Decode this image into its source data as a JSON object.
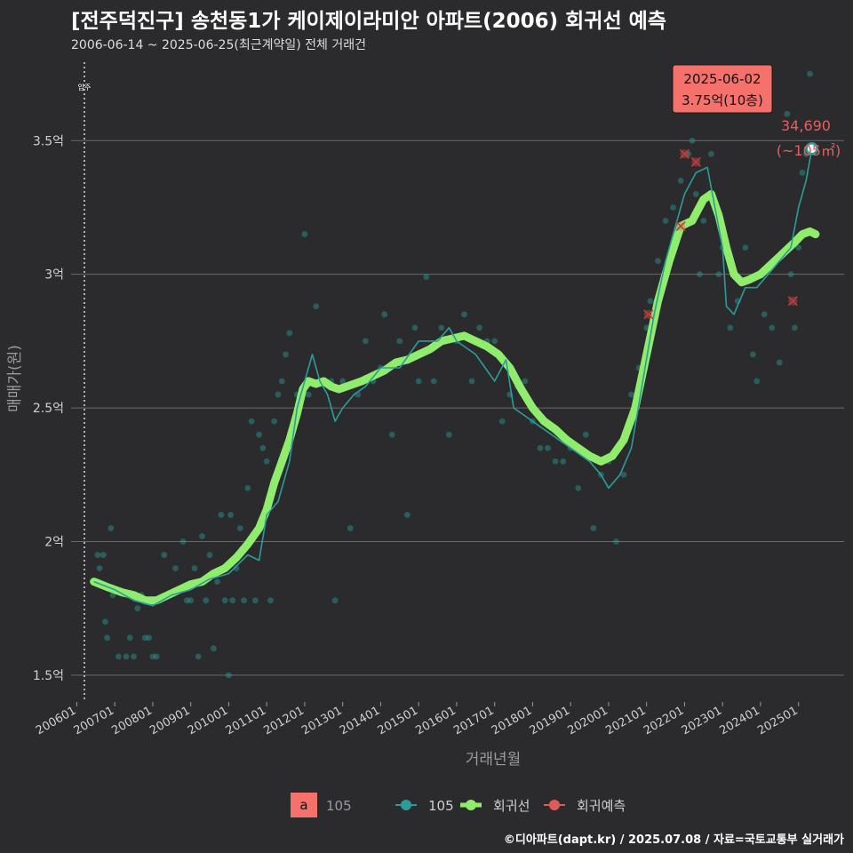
{
  "title": "[전주덕진구] 송천동1가 케이제이라미안 아파트(2006) 회귀선 예측",
  "subtitle": "2006-06-14 ~ 2025-06-25(최근계약일) 전체 거래건",
  "footer": "©디아파트(dapt.kr) / 2025.07.08 / 자료=국토교통부 실거래가",
  "colors": {
    "background": "#2b2b2d",
    "series_105": "#2a9d9a",
    "regression": "#8fec6c",
    "forecast": "#e05a5a",
    "callout_bg": "#f4716c",
    "gridline": "#6a6a6a"
  },
  "chart_data": {
    "type": "scatter",
    "xlabel": "거래년월",
    "ylabel": "매매가(원)",
    "ylim": [
      1.4,
      3.82
    ],
    "y_ticks": [
      1.5,
      2,
      2.5,
      3,
      3.5
    ],
    "y_tick_labels": [
      "1.5억",
      "2억",
      "2.5억",
      "3억",
      "3.5억"
    ],
    "x_tick_labels": [
      "200601",
      "200701",
      "200801",
      "200901",
      "201001",
      "201101",
      "201201",
      "201301",
      "201401",
      "201501",
      "201601",
      "201701",
      "201801",
      "201901",
      "202001",
      "202101",
      "202201",
      "202301",
      "202401",
      "202501"
    ],
    "x_tick_values": [
      2006.0,
      2007.0,
      2008.0,
      2009.0,
      2010.0,
      2011.0,
      2012.0,
      2013.0,
      2014.0,
      2015.0,
      2016.0,
      2017.0,
      2018.0,
      2019.0,
      2020.0,
      2021.0,
      2022.0,
      2023.0,
      2024.0,
      2025.0
    ],
    "xlim": [
      2005.85,
      2026.2
    ],
    "move_in": {
      "x": 2006.2,
      "label": "입주"
    },
    "series": [
      {
        "name": "105",
        "kind": "trades",
        "points": [
          [
            2006.55,
            1.95
          ],
          [
            2006.6,
            1.9
          ],
          [
            2006.7,
            1.95
          ],
          [
            2006.75,
            1.7
          ],
          [
            2006.8,
            1.64
          ],
          [
            2006.9,
            2.05
          ],
          [
            2006.95,
            1.8
          ],
          [
            2007.1,
            1.57
          ],
          [
            2007.3,
            1.57
          ],
          [
            2007.4,
            1.64
          ],
          [
            2007.5,
            1.57
          ],
          [
            2007.6,
            1.75
          ],
          [
            2007.7,
            1.8
          ],
          [
            2007.8,
            1.64
          ],
          [
            2007.9,
            1.64
          ],
          [
            2008.0,
            1.57
          ],
          [
            2008.1,
            1.57
          ],
          [
            2008.2,
            1.78
          ],
          [
            2008.3,
            1.95
          ],
          [
            2008.4,
            1.8
          ],
          [
            2008.6,
            1.9
          ],
          [
            2008.8,
            2.0
          ],
          [
            2008.9,
            1.78
          ],
          [
            2009.0,
            1.78
          ],
          [
            2009.1,
            1.9
          ],
          [
            2009.2,
            1.57
          ],
          [
            2009.3,
            2.02
          ],
          [
            2009.4,
            1.78
          ],
          [
            2009.5,
            1.95
          ],
          [
            2009.6,
            1.6
          ],
          [
            2009.7,
            1.85
          ],
          [
            2009.8,
            2.1
          ],
          [
            2009.9,
            1.78
          ],
          [
            2010.0,
            1.5
          ],
          [
            2010.05,
            2.1
          ],
          [
            2010.1,
            1.78
          ],
          [
            2010.2,
            1.9
          ],
          [
            2010.3,
            2.05
          ],
          [
            2010.4,
            1.78
          ],
          [
            2010.5,
            2.2
          ],
          [
            2010.6,
            2.45
          ],
          [
            2010.7,
            1.78
          ],
          [
            2010.8,
            2.4
          ],
          [
            2010.9,
            2.35
          ],
          [
            2011.0,
            2.3
          ],
          [
            2011.1,
            1.78
          ],
          [
            2011.2,
            2.45
          ],
          [
            2011.3,
            2.55
          ],
          [
            2011.4,
            2.6
          ],
          [
            2011.5,
            2.7
          ],
          [
            2011.6,
            2.78
          ],
          [
            2011.8,
            2.55
          ],
          [
            2012.0,
            3.15
          ],
          [
            2012.1,
            2.55
          ],
          [
            2012.3,
            2.88
          ],
          [
            2012.5,
            2.6
          ],
          [
            2012.7,
            2.6
          ],
          [
            2012.8,
            1.78
          ],
          [
            2013.0,
            2.6
          ],
          [
            2013.2,
            2.05
          ],
          [
            2013.4,
            2.55
          ],
          [
            2013.6,
            2.75
          ],
          [
            2013.8,
            2.6
          ],
          [
            2014.0,
            2.65
          ],
          [
            2014.1,
            2.85
          ],
          [
            2014.3,
            2.4
          ],
          [
            2014.5,
            2.75
          ],
          [
            2014.7,
            2.1
          ],
          [
            2014.9,
            2.8
          ],
          [
            2015.0,
            2.6
          ],
          [
            2015.2,
            2.99
          ],
          [
            2015.4,
            2.6
          ],
          [
            2015.6,
            2.8
          ],
          [
            2015.8,
            2.4
          ],
          [
            2016.0,
            2.75
          ],
          [
            2016.2,
            2.85
          ],
          [
            2016.4,
            2.6
          ],
          [
            2016.6,
            2.8
          ],
          [
            2016.8,
            2.75
          ],
          [
            2017.0,
            2.75
          ],
          [
            2017.2,
            2.45
          ],
          [
            2017.4,
            2.55
          ],
          [
            2017.6,
            2.58
          ],
          [
            2017.8,
            2.6
          ],
          [
            2018.0,
            2.45
          ],
          [
            2018.2,
            2.35
          ],
          [
            2018.4,
            2.35
          ],
          [
            2018.6,
            2.3
          ],
          [
            2018.8,
            2.3
          ],
          [
            2019.0,
            2.35
          ],
          [
            2019.2,
            2.2
          ],
          [
            2019.4,
            2.4
          ],
          [
            2019.6,
            2.05
          ],
          [
            2019.8,
            2.25
          ],
          [
            2020.0,
            2.3
          ],
          [
            2020.2,
            2.0
          ],
          [
            2020.4,
            2.25
          ],
          [
            2020.6,
            2.55
          ],
          [
            2020.8,
            2.65
          ],
          [
            2021.0,
            2.8
          ],
          [
            2021.1,
            2.9
          ],
          [
            2021.3,
            3.05
          ],
          [
            2021.5,
            3.2
          ],
          [
            2021.7,
            3.25
          ],
          [
            2021.9,
            3.35
          ],
          [
            2022.0,
            3.67
          ],
          [
            2022.1,
            3.45
          ],
          [
            2022.2,
            3.5
          ],
          [
            2022.3,
            3.3
          ],
          [
            2022.4,
            3.0
          ],
          [
            2022.5,
            3.2
          ],
          [
            2022.7,
            3.45
          ],
          [
            2022.9,
            3.0
          ],
          [
            2023.0,
            3.1
          ],
          [
            2023.2,
            2.8
          ],
          [
            2023.4,
            2.9
          ],
          [
            2023.6,
            3.1
          ],
          [
            2023.8,
            2.7
          ],
          [
            2023.9,
            2.6
          ],
          [
            2024.1,
            2.85
          ],
          [
            2024.3,
            2.8
          ],
          [
            2024.5,
            2.67
          ],
          [
            2024.7,
            3.6
          ],
          [
            2024.8,
            3.0
          ],
          [
            2024.9,
            2.8
          ],
          [
            2025.0,
            3.1
          ],
          [
            2025.1,
            3.38
          ],
          [
            2025.2,
            3.45
          ],
          [
            2025.3,
            3.75
          ]
        ]
      },
      {
        "name": "105",
        "kind": "monthly-line",
        "points": [
          [
            2006.45,
            1.85
          ],
          [
            2007.0,
            1.82
          ],
          [
            2007.5,
            1.78
          ],
          [
            2008.0,
            1.76
          ],
          [
            2008.5,
            1.8
          ],
          [
            2009.0,
            1.82
          ],
          [
            2009.5,
            1.86
          ],
          [
            2010.0,
            1.88
          ],
          [
            2010.5,
            1.95
          ],
          [
            2010.8,
            1.93
          ],
          [
            2011.0,
            2.1
          ],
          [
            2011.3,
            2.15
          ],
          [
            2011.6,
            2.3
          ],
          [
            2011.8,
            2.5
          ],
          [
            2012.0,
            2.6
          ],
          [
            2012.2,
            2.7
          ],
          [
            2012.4,
            2.6
          ],
          [
            2012.6,
            2.55
          ],
          [
            2012.8,
            2.45
          ],
          [
            2013.0,
            2.5
          ],
          [
            2013.3,
            2.55
          ],
          [
            2013.6,
            2.58
          ],
          [
            2014.0,
            2.65
          ],
          [
            2014.5,
            2.65
          ],
          [
            2015.0,
            2.75
          ],
          [
            2015.5,
            2.75
          ],
          [
            2015.8,
            2.8
          ],
          [
            2016.0,
            2.75
          ],
          [
            2016.5,
            2.7
          ],
          [
            2017.0,
            2.6
          ],
          [
            2017.3,
            2.68
          ],
          [
            2017.5,
            2.5
          ],
          [
            2018.0,
            2.45
          ],
          [
            2018.5,
            2.4
          ],
          [
            2019.0,
            2.35
          ],
          [
            2019.5,
            2.3
          ],
          [
            2019.8,
            2.25
          ],
          [
            2020.0,
            2.2
          ],
          [
            2020.3,
            2.25
          ],
          [
            2020.6,
            2.35
          ],
          [
            2020.9,
            2.6
          ],
          [
            2021.2,
            2.85
          ],
          [
            2021.5,
            3.05
          ],
          [
            2021.8,
            3.2
          ],
          [
            2022.0,
            3.3
          ],
          [
            2022.3,
            3.38
          ],
          [
            2022.6,
            3.4
          ],
          [
            2022.8,
            3.25
          ],
          [
            2023.0,
            3.1
          ],
          [
            2023.1,
            2.88
          ],
          [
            2023.3,
            2.85
          ],
          [
            2023.6,
            2.95
          ],
          [
            2023.9,
            2.95
          ],
          [
            2024.2,
            3.0
          ],
          [
            2024.5,
            3.05
          ],
          [
            2024.8,
            3.1
          ],
          [
            2025.0,
            3.25
          ],
          [
            2025.2,
            3.35
          ],
          [
            2025.35,
            3.47
          ]
        ]
      },
      {
        "name": "회귀선",
        "kind": "regression",
        "points": [
          [
            2006.45,
            1.85
          ],
          [
            2006.8,
            1.83
          ],
          [
            2007.2,
            1.81
          ],
          [
            2007.5,
            1.8
          ],
          [
            2007.8,
            1.78
          ],
          [
            2008.1,
            1.78
          ],
          [
            2008.4,
            1.8
          ],
          [
            2008.7,
            1.82
          ],
          [
            2009.0,
            1.84
          ],
          [
            2009.3,
            1.85
          ],
          [
            2009.6,
            1.88
          ],
          [
            2009.9,
            1.9
          ],
          [
            2010.2,
            1.94
          ],
          [
            2010.5,
            1.99
          ],
          [
            2010.8,
            2.05
          ],
          [
            2011.0,
            2.12
          ],
          [
            2011.2,
            2.22
          ],
          [
            2011.4,
            2.3
          ],
          [
            2011.6,
            2.38
          ],
          [
            2011.8,
            2.48
          ],
          [
            2011.95,
            2.57
          ],
          [
            2012.1,
            2.6
          ],
          [
            2012.3,
            2.59
          ],
          [
            2012.5,
            2.6
          ],
          [
            2012.7,
            2.58
          ],
          [
            2012.9,
            2.57
          ],
          [
            2013.1,
            2.58
          ],
          [
            2013.3,
            2.59
          ],
          [
            2013.5,
            2.6
          ],
          [
            2013.8,
            2.62
          ],
          [
            2014.1,
            2.64
          ],
          [
            2014.4,
            2.67
          ],
          [
            2014.7,
            2.68
          ],
          [
            2015.0,
            2.7
          ],
          [
            2015.3,
            2.72
          ],
          [
            2015.6,
            2.75
          ],
          [
            2015.9,
            2.76
          ],
          [
            2016.2,
            2.77
          ],
          [
            2016.5,
            2.75
          ],
          [
            2016.8,
            2.73
          ],
          [
            2017.1,
            2.7
          ],
          [
            2017.4,
            2.65
          ],
          [
            2017.7,
            2.57
          ],
          [
            2018.0,
            2.5
          ],
          [
            2018.3,
            2.45
          ],
          [
            2018.6,
            2.42
          ],
          [
            2018.9,
            2.38
          ],
          [
            2019.2,
            2.35
          ],
          [
            2019.5,
            2.32
          ],
          [
            2019.8,
            2.3
          ],
          [
            2020.1,
            2.32
          ],
          [
            2020.4,
            2.38
          ],
          [
            2020.7,
            2.5
          ],
          [
            2021.0,
            2.7
          ],
          [
            2021.3,
            2.9
          ],
          [
            2021.6,
            3.05
          ],
          [
            2021.9,
            3.18
          ],
          [
            2022.2,
            3.2
          ],
          [
            2022.5,
            3.28
          ],
          [
            2022.7,
            3.3
          ],
          [
            2022.9,
            3.22
          ],
          [
            2023.1,
            3.1
          ],
          [
            2023.3,
            3.0
          ],
          [
            2023.5,
            2.97
          ],
          [
            2023.7,
            2.98
          ],
          [
            2024.0,
            3.0
          ],
          [
            2024.3,
            3.04
          ],
          [
            2024.6,
            3.08
          ],
          [
            2024.9,
            3.12
          ],
          [
            2025.1,
            3.15
          ],
          [
            2025.3,
            3.16
          ],
          [
            2025.45,
            3.15
          ]
        ]
      },
      {
        "name": "회귀예측",
        "kind": "forecast",
        "points": [
          [
            2021.05,
            2.85
          ],
          [
            2021.9,
            3.18
          ],
          [
            2022.0,
            3.45
          ],
          [
            2022.3,
            3.42
          ],
          [
            2024.85,
            2.9
          ]
        ]
      }
    ],
    "highlight": {
      "x": 2025.35,
      "y": 3.47,
      "label": "34,690",
      "sublabel": "(~105㎡)"
    },
    "callout": {
      "date": "2025-06-02",
      "price": "3.75억(10층)"
    },
    "legend": {
      "position": "bottom",
      "box_letter": "a",
      "box_label": "105",
      "items": [
        {
          "label": "105",
          "color": "#2a9d9a"
        },
        {
          "label": "회귀선",
          "color": "#8fec6c"
        },
        {
          "label": "회귀예측",
          "color": "#e05a5a"
        }
      ]
    }
  }
}
